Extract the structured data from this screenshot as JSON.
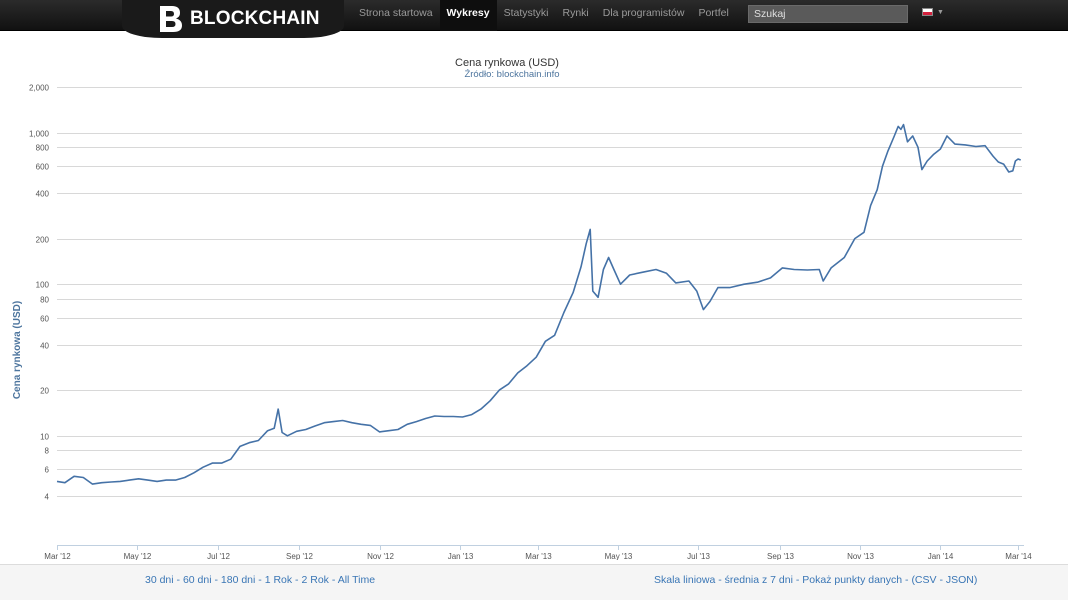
{
  "header": {
    "brand": "BLOCKCHAIN",
    "nav": [
      {
        "label": "Strona startowa",
        "active": false
      },
      {
        "label": "Wykresy",
        "active": true
      },
      {
        "label": "Statystyki",
        "active": false
      },
      {
        "label": "Rynki",
        "active": false
      },
      {
        "label": "Dla programistów",
        "active": false
      },
      {
        "label": "Portfel",
        "active": false
      }
    ],
    "search_placeholder": "Szukaj",
    "language_flag": "poland-flag-icon"
  },
  "chart_data": {
    "type": "line",
    "title": "Cena rynkowa (USD)",
    "subtitle": "Źródło: blockchain.info",
    "ylabel": "Cena rynkowa (USD)",
    "xlabel": "",
    "yscale": "log",
    "ylim": [
      3,
      2000
    ],
    "xlim": [
      "2012-03-01",
      "2014-03-04"
    ],
    "grid": true,
    "line_color": "#4572a7",
    "yticks": [
      {
        "value": 4,
        "label": "4"
      },
      {
        "value": 6,
        "label": "6"
      },
      {
        "value": 8,
        "label": "8"
      },
      {
        "value": 10,
        "label": "10"
      },
      {
        "value": 20,
        "label": "20"
      },
      {
        "value": 40,
        "label": "40"
      },
      {
        "value": 60,
        "label": "60"
      },
      {
        "value": 80,
        "label": "80"
      },
      {
        "value": 100,
        "label": "100"
      },
      {
        "value": 200,
        "label": "200"
      },
      {
        "value": 400,
        "label": "400"
      },
      {
        "value": 600,
        "label": "600"
      },
      {
        "value": 800,
        "label": "800"
      },
      {
        "value": 1000,
        "label": "1,000"
      },
      {
        "value": 2000,
        "label": "2,000"
      }
    ],
    "xticks": [
      {
        "date": "2012-03-01",
        "label": "Mar '12"
      },
      {
        "date": "2012-05-01",
        "label": "May '12"
      },
      {
        "date": "2012-07-01",
        "label": "Jul '12"
      },
      {
        "date": "2012-09-01",
        "label": "Sep '12"
      },
      {
        "date": "2012-11-01",
        "label": "Nov '12"
      },
      {
        "date": "2013-01-01",
        "label": "Jan '13"
      },
      {
        "date": "2013-03-01",
        "label": "Mar '13"
      },
      {
        "date": "2013-05-01",
        "label": "May '13"
      },
      {
        "date": "2013-07-01",
        "label": "Jul '13"
      },
      {
        "date": "2013-09-01",
        "label": "Sep '13"
      },
      {
        "date": "2013-11-01",
        "label": "Nov '13"
      },
      {
        "date": "2014-01-01",
        "label": "Jan '14"
      },
      {
        "date": "2014-03-01",
        "label": "Mar '14"
      }
    ],
    "series": [
      {
        "points": [
          [
            "2012-03-01",
            5.0
          ],
          [
            "2012-03-07",
            4.9
          ],
          [
            "2012-03-14",
            5.4
          ],
          [
            "2012-03-21",
            5.3
          ],
          [
            "2012-03-28",
            4.8
          ],
          [
            "2012-04-04",
            4.9
          ],
          [
            "2012-04-11",
            4.95
          ],
          [
            "2012-04-18",
            5.0
          ],
          [
            "2012-04-25",
            5.1
          ],
          [
            "2012-05-02",
            5.2
          ],
          [
            "2012-05-09",
            5.1
          ],
          [
            "2012-05-16",
            5.0
          ],
          [
            "2012-05-23",
            5.1
          ],
          [
            "2012-05-30",
            5.1
          ],
          [
            "2012-06-06",
            5.3
          ],
          [
            "2012-06-13",
            5.7
          ],
          [
            "2012-06-20",
            6.2
          ],
          [
            "2012-06-27",
            6.6
          ],
          [
            "2012-07-04",
            6.6
          ],
          [
            "2012-07-11",
            7.0
          ],
          [
            "2012-07-18",
            8.5
          ],
          [
            "2012-07-25",
            9.0
          ],
          [
            "2012-08-01",
            9.3
          ],
          [
            "2012-08-08",
            10.8
          ],
          [
            "2012-08-13",
            11.2
          ],
          [
            "2012-08-16",
            15.0
          ],
          [
            "2012-08-19",
            10.5
          ],
          [
            "2012-08-23",
            10.0
          ],
          [
            "2012-08-30",
            10.7
          ],
          [
            "2012-09-06",
            11.0
          ],
          [
            "2012-09-13",
            11.6
          ],
          [
            "2012-09-20",
            12.2
          ],
          [
            "2012-09-27",
            12.4
          ],
          [
            "2012-10-04",
            12.6
          ],
          [
            "2012-10-11",
            12.2
          ],
          [
            "2012-10-18",
            11.9
          ],
          [
            "2012-10-25",
            11.7
          ],
          [
            "2012-11-01",
            10.6
          ],
          [
            "2012-11-08",
            10.8
          ],
          [
            "2012-11-15",
            11.0
          ],
          [
            "2012-11-22",
            11.9
          ],
          [
            "2012-11-29",
            12.4
          ],
          [
            "2012-12-06",
            13.0
          ],
          [
            "2012-12-13",
            13.5
          ],
          [
            "2012-12-20",
            13.4
          ],
          [
            "2012-12-27",
            13.4
          ],
          [
            "2013-01-03",
            13.3
          ],
          [
            "2013-01-10",
            13.8
          ],
          [
            "2013-01-17",
            15.0
          ],
          [
            "2013-01-24",
            17.0
          ],
          [
            "2013-01-31",
            20.0
          ],
          [
            "2013-02-07",
            22.0
          ],
          [
            "2013-02-14",
            26.0
          ],
          [
            "2013-02-21",
            29.0
          ],
          [
            "2013-02-28",
            33.0
          ],
          [
            "2013-03-07",
            42.0
          ],
          [
            "2013-03-14",
            46.0
          ],
          [
            "2013-03-21",
            65.0
          ],
          [
            "2013-03-28",
            88.0
          ],
          [
            "2013-04-03",
            130.0
          ],
          [
            "2013-04-07",
            185.0
          ],
          [
            "2013-04-10",
            230.0
          ],
          [
            "2013-04-12",
            90.0
          ],
          [
            "2013-04-16",
            82.0
          ],
          [
            "2013-04-20",
            125.0
          ],
          [
            "2013-04-24",
            150.0
          ],
          [
            "2013-04-28",
            125.0
          ],
          [
            "2013-05-03",
            100.0
          ],
          [
            "2013-05-10",
            115.0
          ],
          [
            "2013-05-20",
            120.0
          ],
          [
            "2013-05-30",
            125.0
          ],
          [
            "2013-06-07",
            118.0
          ],
          [
            "2013-06-14",
            102.0
          ],
          [
            "2013-06-24",
            105.0
          ],
          [
            "2013-06-30",
            90.0
          ],
          [
            "2013-07-05",
            68.0
          ],
          [
            "2013-07-10",
            77.0
          ],
          [
            "2013-07-16",
            95.0
          ],
          [
            "2013-07-25",
            95.0
          ],
          [
            "2013-08-05",
            100.0
          ],
          [
            "2013-08-15",
            103.0
          ],
          [
            "2013-08-25",
            110.0
          ],
          [
            "2013-09-03",
            128.0
          ],
          [
            "2013-09-12",
            125.0
          ],
          [
            "2013-09-22",
            124.0
          ],
          [
            "2013-10-01",
            125.0
          ],
          [
            "2013-10-04",
            105.0
          ],
          [
            "2013-10-10",
            128.0
          ],
          [
            "2013-10-20",
            150.0
          ],
          [
            "2013-10-28",
            200.0
          ],
          [
            "2013-11-04",
            220.0
          ],
          [
            "2013-11-09",
            330.0
          ],
          [
            "2013-11-14",
            420.0
          ],
          [
            "2013-11-18",
            600.0
          ],
          [
            "2013-11-22",
            750.0
          ],
          [
            "2013-11-27",
            950.0
          ],
          [
            "2013-11-30",
            1100.0
          ],
          [
            "2013-12-02",
            1050.0
          ],
          [
            "2013-12-04",
            1130.0
          ],
          [
            "2013-12-07",
            870.0
          ],
          [
            "2013-12-11",
            950.0
          ],
          [
            "2013-12-15",
            800.0
          ],
          [
            "2013-12-18",
            570.0
          ],
          [
            "2013-12-22",
            650.0
          ],
          [
            "2013-12-27",
            720.0
          ],
          [
            "2014-01-01",
            780.0
          ],
          [
            "2014-01-06",
            950.0
          ],
          [
            "2014-01-12",
            840.0
          ],
          [
            "2014-01-20",
            830.0
          ],
          [
            "2014-01-28",
            810.0
          ],
          [
            "2014-02-04",
            820.0
          ],
          [
            "2014-02-10",
            700.0
          ],
          [
            "2014-02-14",
            640.0
          ],
          [
            "2014-02-18",
            620.0
          ],
          [
            "2014-02-22",
            550.0
          ],
          [
            "2014-02-25",
            560.0
          ],
          [
            "2014-02-27",
            650.0
          ],
          [
            "2014-03-01",
            670.0
          ],
          [
            "2014-03-03",
            660.0
          ]
        ]
      }
    ]
  },
  "footer": {
    "range_links": [
      "30 dni",
      "60 dni",
      "180 dni",
      "1 Rok",
      "2 Rok",
      "All Time"
    ],
    "options_links": [
      "Skala liniowa",
      "średnia z 7 dni",
      "Pokaż punkty danych",
      "(CSV",
      "JSON)"
    ]
  }
}
